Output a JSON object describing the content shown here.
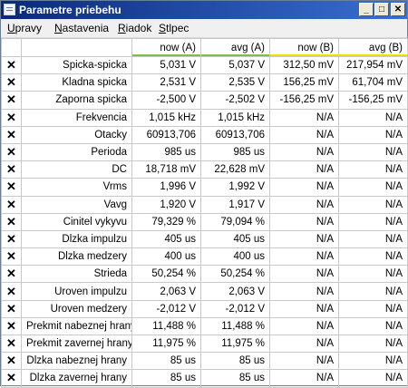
{
  "window": {
    "title": "Parametre priebehu",
    "min_label": "_",
    "max_label": "□",
    "close_label": "✕"
  },
  "menu": [
    {
      "ul": "U",
      "rest": "pravy"
    },
    {
      "ul": "N",
      "rest": "astavenia"
    },
    {
      "ul": "R",
      "rest": "iadok"
    },
    {
      "ul": "S",
      "rest": "tlpec"
    }
  ],
  "columns": [
    "",
    "",
    "now (A)",
    "avg (A)",
    "now (B)",
    "avg (B)"
  ],
  "column_underline_colors": {
    "A": "#7fbf3f",
    "B": "#e8e000"
  },
  "rows": [
    {
      "name": "Spicka-spicka",
      "now_a": "5,031 V",
      "avg_a": "5,037 V",
      "now_b": "312,50 mV",
      "avg_b": "217,954 mV"
    },
    {
      "name": "Kladna spicka",
      "now_a": "2,531 V",
      "avg_a": "2,535 V",
      "now_b": "156,25 mV",
      "avg_b": "61,704 mV"
    },
    {
      "name": "Zaporna spicka",
      "now_a": "-2,500 V",
      "avg_a": "-2,502 V",
      "now_b": "-156,25 mV",
      "avg_b": "-156,25 mV"
    },
    {
      "name": "Frekvencia",
      "now_a": "1,015 kHz",
      "avg_a": "1,015 kHz",
      "now_b": "N/A",
      "avg_b": "N/A"
    },
    {
      "name": "Otacky",
      "now_a": "60913,706",
      "avg_a": "60913,706",
      "now_b": "N/A",
      "avg_b": "N/A"
    },
    {
      "name": "Perioda",
      "now_a": "985 us",
      "avg_a": "985 us",
      "now_b": "N/A",
      "avg_b": "N/A"
    },
    {
      "name": "DC",
      "now_a": "18,718 mV",
      "avg_a": "22,628 mV",
      "now_b": "N/A",
      "avg_b": "N/A"
    },
    {
      "name": "Vrms",
      "now_a": "1,996 V",
      "avg_a": "1,992 V",
      "now_b": "N/A",
      "avg_b": "N/A"
    },
    {
      "name": "Vavg",
      "now_a": "1,920 V",
      "avg_a": "1,917 V",
      "now_b": "N/A",
      "avg_b": "N/A"
    },
    {
      "name": "Cinitel vykyvu",
      "now_a": "79,329 %",
      "avg_a": "79,094 %",
      "now_b": "N/A",
      "avg_b": "N/A"
    },
    {
      "name": "Dlzka impulzu",
      "now_a": "405 us",
      "avg_a": "405 us",
      "now_b": "N/A",
      "avg_b": "N/A"
    },
    {
      "name": "Dlzka medzery",
      "now_a": "400 us",
      "avg_a": "400 us",
      "now_b": "N/A",
      "avg_b": "N/A"
    },
    {
      "name": "Strieda",
      "now_a": "50,254 %",
      "avg_a": "50,254 %",
      "now_b": "N/A",
      "avg_b": "N/A"
    },
    {
      "name": "Uroven impulzu",
      "now_a": "2,063 V",
      "avg_a": "2,063 V",
      "now_b": "N/A",
      "avg_b": "N/A"
    },
    {
      "name": "Uroven medzery",
      "now_a": "-2,012 V",
      "avg_a": "-2,012 V",
      "now_b": "N/A",
      "avg_b": "N/A"
    },
    {
      "name": "Prekmit nabeznej hrany",
      "now_a": "11,488 %",
      "avg_a": "11,488 %",
      "now_b": "N/A",
      "avg_b": "N/A"
    },
    {
      "name": "Prekmit zavernej hrany",
      "now_a": "11,975 %",
      "avg_a": "11,975 %",
      "now_b": "N/A",
      "avg_b": "N/A"
    },
    {
      "name": "Dlzka nabeznej hrany",
      "now_a": "85 us",
      "avg_a": "85 us",
      "now_b": "N/A",
      "avg_b": "N/A"
    },
    {
      "name": "Dlzka zavernej hrany",
      "now_a": "85 us",
      "avg_a": "85 us",
      "now_b": "N/A",
      "avg_b": "N/A"
    }
  ],
  "remove_icon_glyph": "✕"
}
